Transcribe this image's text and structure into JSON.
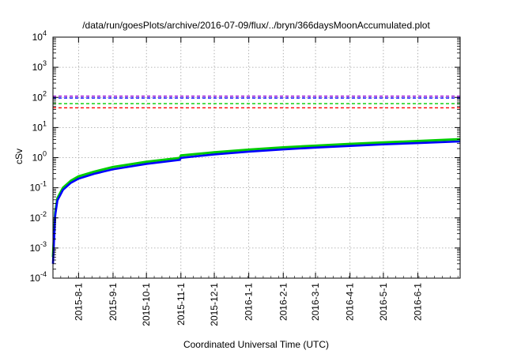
{
  "chart_data": {
    "type": "line",
    "title": "/data/run/goesPlots/archive/2016-07-09/flux/../bryn/366daysMoonAccumulated.plot",
    "xlabel": "Coordinated Universal Time (UTC)",
    "ylabel": "cSv",
    "y_scale": "log",
    "ylim": [
      0.0001,
      10000
    ],
    "y_ticks": [
      {
        "base": "10",
        "exp": "-4",
        "value": 0.0001
      },
      {
        "base": "10",
        "exp": "-3",
        "value": 0.001
      },
      {
        "base": "10",
        "exp": "-2",
        "value": 0.01
      },
      {
        "base": "10",
        "exp": "-1",
        "value": 0.1
      },
      {
        "base": "10",
        "exp": "0",
        "value": 1
      },
      {
        "base": "10",
        "exp": "1",
        "value": 10
      },
      {
        "base": "10",
        "exp": "2",
        "value": 100
      },
      {
        "base": "10",
        "exp": "3",
        "value": 1000
      },
      {
        "base": "10",
        "exp": "4",
        "value": 10000
      }
    ],
    "xlim": [
      "2015-07-09",
      "2016-07-09"
    ],
    "x_ticks": [
      "2015-8-1",
      "2015-9-1",
      "2015-10-1",
      "2015-11-1",
      "2015-12-1",
      "2016-1-1",
      "2016-2-1",
      "2016-3-1",
      "2016-4-1",
      "2016-5-1",
      "2016-6-1"
    ],
    "x_tick_dates": [
      "2015-08-01",
      "2015-09-01",
      "2015-10-01",
      "2015-11-01",
      "2015-12-01",
      "2016-01-01",
      "2016-02-01",
      "2016-03-01",
      "2016-04-01",
      "2016-05-01",
      "2016-06-01"
    ],
    "grid": true,
    "thresholds": [
      {
        "value": 110,
        "color": "#9400d3"
      },
      {
        "value": 95,
        "color": "#0000ff"
      },
      {
        "value": 62,
        "color": "#00cc00"
      },
      {
        "value": 45,
        "color": "#ff0000"
      }
    ],
    "series": [
      {
        "color": "#00cc00",
        "x": [
          "2015-07-09",
          "2015-07-11",
          "2015-07-13",
          "2015-07-18",
          "2015-07-25",
          "2015-08-01",
          "2015-08-15",
          "2015-09-01",
          "2015-10-01",
          "2015-10-31",
          "2015-11-01",
          "2015-12-01",
          "2016-01-01",
          "2016-02-01",
          "2016-03-01",
          "2016-04-01",
          "2016-05-01",
          "2016-06-01",
          "2016-07-09"
        ],
        "values": [
          0.0005,
          0.015,
          0.045,
          0.1,
          0.17,
          0.24,
          0.34,
          0.49,
          0.73,
          0.98,
          1.18,
          1.5,
          1.85,
          2.2,
          2.5,
          2.85,
          3.2,
          3.55,
          4.1
        ]
      },
      {
        "color": "#0000ff",
        "x": [
          "2015-07-09",
          "2015-07-11",
          "2015-07-13",
          "2015-07-18",
          "2015-07-25",
          "2015-08-01",
          "2015-08-15",
          "2015-09-01",
          "2015-10-01",
          "2015-10-31",
          "2015-11-01",
          "2015-12-01",
          "2016-01-01",
          "2016-02-01",
          "2016-03-01",
          "2016-04-01",
          "2016-05-01",
          "2016-06-01",
          "2016-07-09"
        ],
        "values": [
          0.0003,
          0.012,
          0.038,
          0.085,
          0.145,
          0.2,
          0.29,
          0.41,
          0.62,
          0.84,
          0.98,
          1.28,
          1.58,
          1.88,
          2.15,
          2.45,
          2.75,
          3.05,
          3.45
        ]
      }
    ]
  }
}
